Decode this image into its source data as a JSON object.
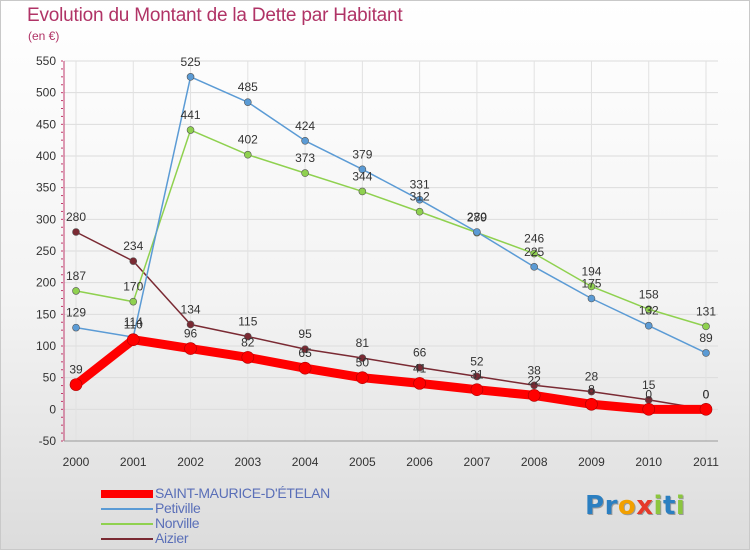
{
  "chart_data": {
    "type": "line",
    "title": "Evolution du Montant de la Dette par Habitant",
    "subtitle": "(en €)",
    "xlabel": "",
    "ylabel": "",
    "categories": [
      "2000",
      "2001",
      "2002",
      "2003",
      "2004",
      "2005",
      "2006",
      "2007",
      "2008",
      "2009",
      "2010",
      "2011"
    ],
    "ylim": [
      -50,
      550
    ],
    "yticks": [
      -50,
      0,
      50,
      100,
      150,
      200,
      250,
      300,
      350,
      400,
      450,
      500,
      550
    ],
    "grid": true,
    "legend_position": "bottom-left",
    "series": [
      {
        "name": "Aizier",
        "color": "#7a2a33",
        "values": [
          280,
          234,
          134,
          115,
          95,
          81,
          66,
          52,
          38,
          28,
          15,
          0
        ],
        "labels": [
          "280",
          "234",
          "134",
          "115",
          "95",
          "81",
          "66",
          "52",
          "38",
          "28",
          "15",
          "0"
        ]
      },
      {
        "name": "Norville",
        "color": "#8fd14f",
        "values": [
          187,
          170,
          441,
          402,
          373,
          344,
          312,
          279,
          246,
          194,
          158,
          131
        ],
        "labels": [
          "187",
          "170",
          "441",
          "402",
          "373",
          "344",
          "312",
          "279",
          "246",
          "194",
          "158",
          "131"
        ]
      },
      {
        "name": "Petiville",
        "color": "#5b9bd5",
        "values": [
          129,
          114,
          525,
          485,
          424,
          379,
          331,
          280,
          225,
          175,
          132,
          89
        ],
        "labels": [
          "129",
          "114",
          "525",
          "485",
          "424",
          "379",
          "331",
          "280",
          "225",
          "175",
          "132",
          "89"
        ]
      },
      {
        "name": "SAINT-MAURICE-D'ÉTELAN",
        "color": "#ff0000",
        "values": [
          39,
          110,
          96,
          82,
          65,
          50,
          41,
          31,
          22,
          8,
          0,
          0
        ],
        "labels": [
          "39",
          "110",
          "96",
          "82",
          "65",
          "50",
          "41",
          "31",
          "22",
          "8",
          "0",
          "0"
        ]
      }
    ]
  },
  "legend": {
    "items": [
      {
        "name": "SAINT-MAURICE-D'ÉTELAN",
        "color": "#ff0000"
      },
      {
        "name": "Petiville",
        "color": "#5b9bd5"
      },
      {
        "name": "Norville",
        "color": "#8fd14f"
      },
      {
        "name": "Aizier",
        "color": "#7a2a33"
      }
    ]
  },
  "logo": {
    "text": "Proxiti",
    "letters": [
      {
        "ch": "P",
        "color": "#2b7fc1"
      },
      {
        "ch": "r",
        "color": "#2b7fc1"
      },
      {
        "ch": "o",
        "color": "#f2a000"
      },
      {
        "ch": "x",
        "color": "#e63a2a"
      },
      {
        "ch": "i",
        "color": "#8cc63f"
      },
      {
        "ch": "t",
        "color": "#2b7fc1"
      },
      {
        "ch": "i",
        "color": "#8cc63f"
      }
    ]
  }
}
